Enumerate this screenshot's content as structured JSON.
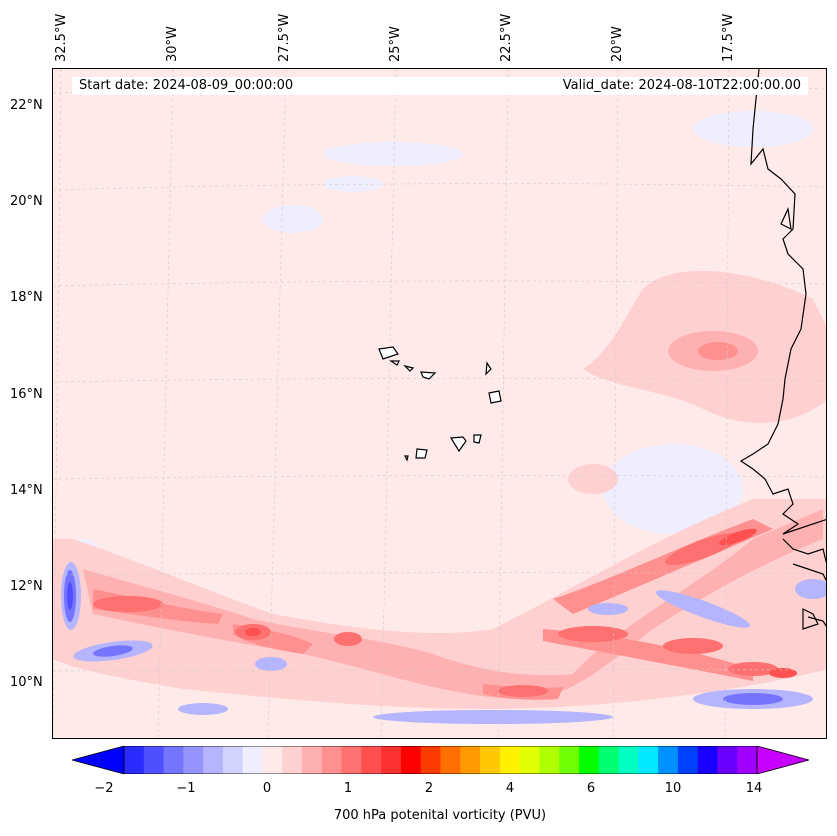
{
  "start_date": "Start date: 2024-08-09_00:00:00",
  "valid_date": "Valid_date: 2024-08-10T22:00:00.00",
  "lon_labels": [
    "32.5°W",
    "30°W",
    "27.5°W",
    "25°W",
    "22.5°W",
    "20°W",
    "17.5°W"
  ],
  "lat_labels": [
    "22°N",
    "20°N",
    "18°N",
    "16°N",
    "14°N",
    "12°N",
    "10°N"
  ],
  "colorbar": {
    "label": "700 hPa potenital vorticity (PVU)",
    "ticks": [
      "−2",
      "−1",
      "0",
      "1",
      "2",
      "4",
      "6",
      "10",
      "14"
    ],
    "colors": [
      "#0000ff",
      "#2b2bff",
      "#4f4fff",
      "#7474ff",
      "#9494ff",
      "#b4b4ff",
      "#d2d2ff",
      "#eeeeff",
      "#ffeaea",
      "#ffd0d0",
      "#ffb0b0",
      "#ff9090",
      "#ff7070",
      "#ff5050",
      "#ff3030",
      "#ff0000",
      "#ff3c00",
      "#ff6e00",
      "#ff9b00",
      "#ffc800",
      "#fff000",
      "#e0ff00",
      "#b0ff00",
      "#70ff00",
      "#00ff00",
      "#00ff70",
      "#00ffc0",
      "#00e8ff",
      "#0090ff",
      "#0040ff",
      "#1a00ff",
      "#6a00ff",
      "#a000ff",
      "#c800ff"
    ]
  }
}
